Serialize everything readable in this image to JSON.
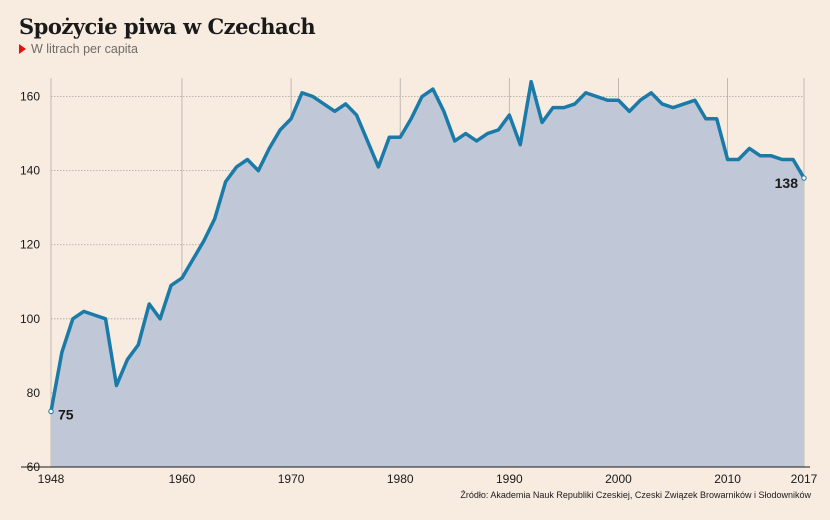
{
  "title": "Spożycie piwa w Czechach",
  "subtitle": "W litrach per capita",
  "source": "Źródło: Akademia Nauk Republiki Czeskiej, Czeski Związek Browarników i Słodowników",
  "colors": {
    "line": "#1a7aa8",
    "area": "#c0c7d6",
    "background": "#f8ece1"
  },
  "chart_data": {
    "type": "area",
    "title": "Spożycie piwa w Czechach",
    "subtitle": "W litrach per capita",
    "xlabel": "",
    "ylabel": "",
    "xlim": [
      1948,
      2017
    ],
    "ylim": [
      60,
      165
    ],
    "x_ticks": [
      1948,
      1960,
      1970,
      1980,
      1990,
      2000,
      2010,
      2017
    ],
    "y_ticks": [
      60,
      80,
      100,
      120,
      140,
      160
    ],
    "grid": true,
    "annotations": [
      {
        "x": 1948,
        "y": 75,
        "label": "75"
      },
      {
        "x": 2017,
        "y": 138,
        "label": "138"
      }
    ],
    "series": [
      {
        "x": [
          1948,
          1949,
          1950,
          1951,
          1952,
          1953,
          1954,
          1955,
          1956,
          1957,
          1958,
          1959,
          1960,
          1961,
          1962,
          1963,
          1964,
          1965,
          1966,
          1967,
          1968,
          1969,
          1970,
          1971,
          1972,
          1973,
          1974,
          1975,
          1976,
          1977,
          1978,
          1979,
          1980,
          1981,
          1982,
          1983,
          1984,
          1985,
          1986,
          1987,
          1988,
          1989,
          1990,
          1991,
          1992,
          1993,
          1994,
          1995,
          1996,
          1997,
          1998,
          1999,
          2000,
          2001,
          2002,
          2003,
          2004,
          2005,
          2006,
          2007,
          2008,
          2009,
          2010,
          2011,
          2012,
          2013,
          2014,
          2015,
          2016,
          2017
        ],
        "values": [
          75,
          91,
          100,
          102,
          101,
          100,
          82,
          89,
          93,
          104,
          100,
          109,
          111,
          116,
          121,
          127,
          137,
          141,
          143,
          140,
          146,
          151,
          154,
          161,
          160,
          158,
          156,
          158,
          155,
          148,
          141,
          149,
          149,
          154,
          160,
          162,
          156,
          148,
          150,
          148,
          150,
          151,
          155,
          147,
          164,
          153,
          157,
          157,
          158,
          161,
          160,
          159,
          159,
          156,
          159,
          161,
          158,
          157,
          158,
          159,
          154,
          154,
          143,
          143,
          146,
          144,
          144,
          143,
          143,
          138
        ]
      }
    ]
  }
}
